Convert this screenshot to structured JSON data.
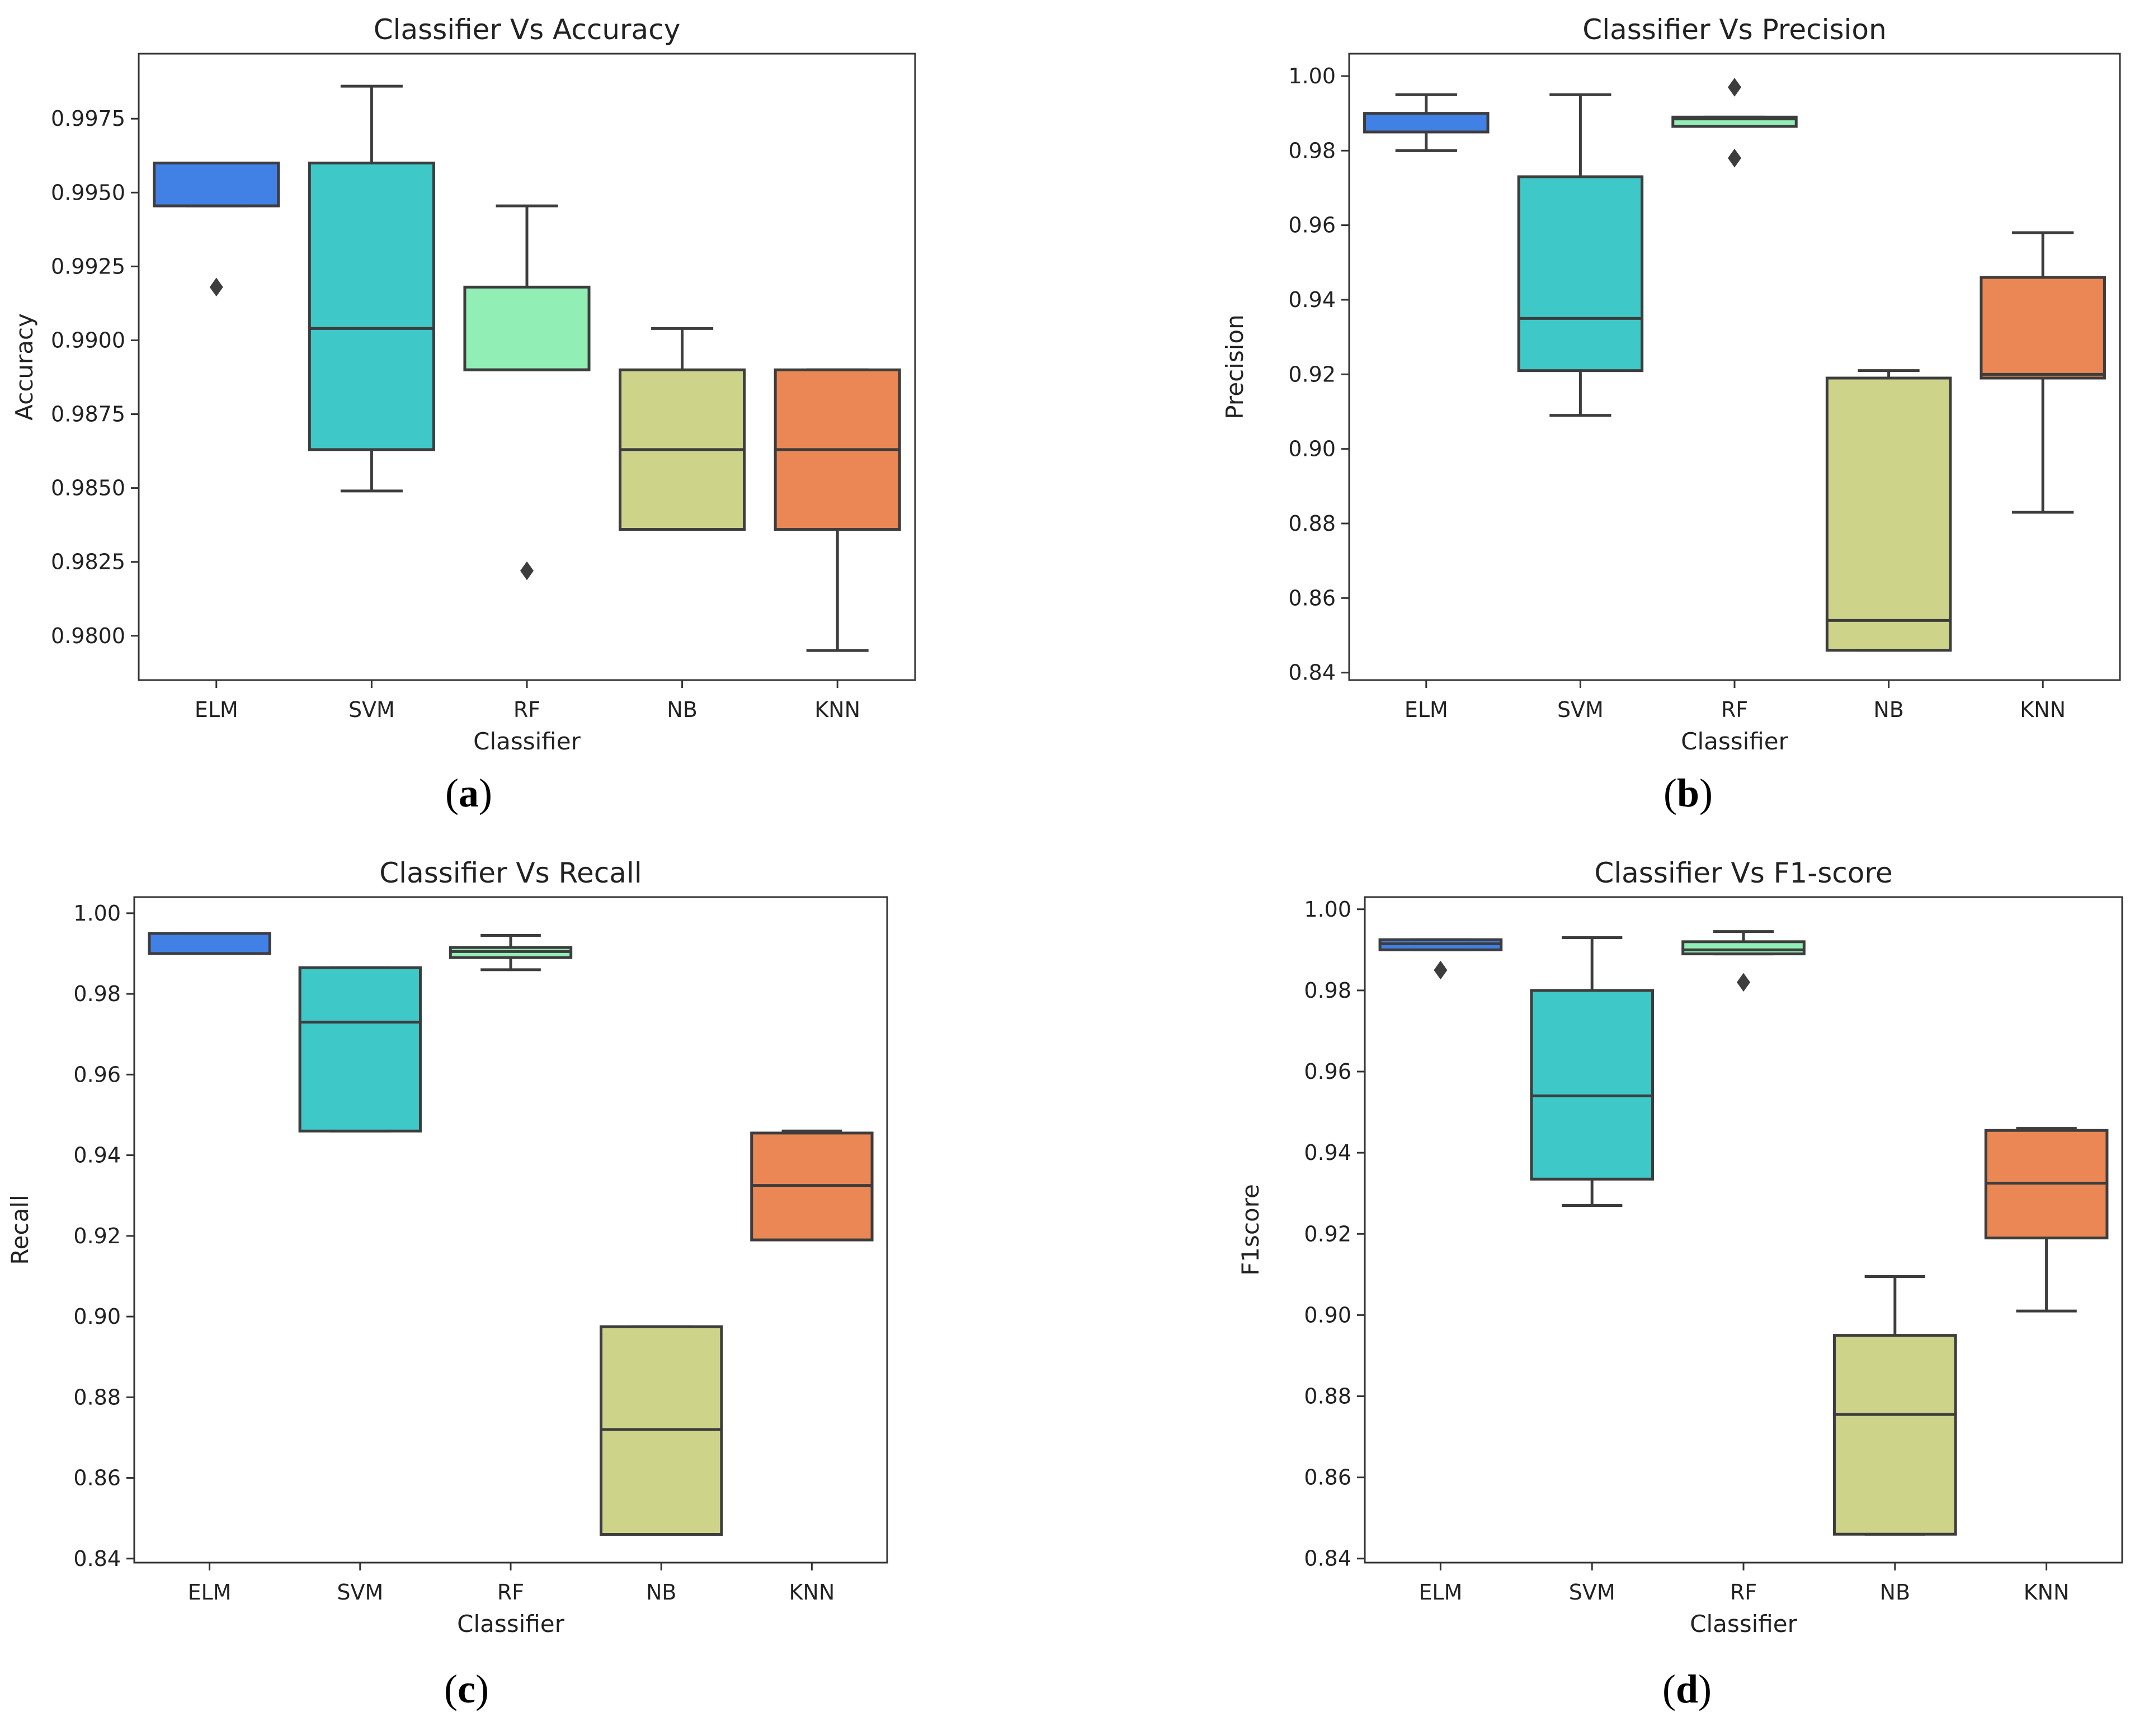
{
  "chart_data": [
    {
      "id": "a",
      "type": "box",
      "panel_label": "a",
      "title": "Classifier Vs Accuracy",
      "xlabel": "Classifier",
      "ylabel": "Accuracy",
      "categories": [
        "ELM",
        "SVM",
        "RF",
        "NB",
        "KNN"
      ],
      "colors": [
        "#4180e5",
        "#3ec8c8",
        "#91efb5",
        "#cdd48a",
        "#ea8755"
      ],
      "ylim": [
        0.9785,
        0.9997
      ],
      "yticks": [
        0.98,
        0.9825,
        0.985,
        0.9875,
        0.99,
        0.9925,
        0.995,
        0.9975
      ],
      "ytick_labels": [
        "0.9800",
        "0.9825",
        "0.9850",
        "0.9875",
        "0.9900",
        "0.9925",
        "0.9950",
        "0.9975"
      ],
      "boxes": [
        {
          "whisker_low": 0.99455,
          "q1": 0.99455,
          "median": 0.99455,
          "q3": 0.996,
          "whisker_high": 0.996,
          "fliers": [
            0.9918
          ]
        },
        {
          "whisker_low": 0.9849,
          "q1": 0.9863,
          "median": 0.9904,
          "q3": 0.996,
          "whisker_high": 0.9986,
          "fliers": []
        },
        {
          "whisker_low": 0.989,
          "q1": 0.989,
          "median": 0.989,
          "q3": 0.9918,
          "whisker_high": 0.99455,
          "fliers": [
            0.9822
          ]
        },
        {
          "whisker_low": 0.9836,
          "q1": 0.9836,
          "median": 0.9863,
          "q3": 0.989,
          "whisker_high": 0.9904,
          "fliers": []
        },
        {
          "whisker_low": 0.9795,
          "q1": 0.9836,
          "median": 0.9863,
          "q3": 0.989,
          "whisker_high": 0.989,
          "fliers": []
        }
      ]
    },
    {
      "id": "b",
      "type": "box",
      "panel_label": "b",
      "title": "Classifier Vs Precision",
      "xlabel": "Classifier",
      "ylabel": "Precision",
      "categories": [
        "ELM",
        "SVM",
        "RF",
        "NB",
        "KNN"
      ],
      "colors": [
        "#4180e5",
        "#3ec8c8",
        "#91efb5",
        "#cdd48a",
        "#ea8755"
      ],
      "ylim": [
        0.838,
        1.006
      ],
      "yticks": [
        0.84,
        0.86,
        0.88,
        0.9,
        0.92,
        0.94,
        0.96,
        0.98,
        1.0
      ],
      "ytick_labels": [
        "0.84",
        "0.86",
        "0.88",
        "0.90",
        "0.92",
        "0.94",
        "0.96",
        "0.98",
        "1.00"
      ],
      "boxes": [
        {
          "whisker_low": 0.98,
          "q1": 0.985,
          "median": 0.985,
          "q3": 0.99,
          "whisker_high": 0.995,
          "fliers": []
        },
        {
          "whisker_low": 0.909,
          "q1": 0.921,
          "median": 0.935,
          "q3": 0.973,
          "whisker_high": 0.995,
          "fliers": []
        },
        {
          "whisker_low": 0.9865,
          "q1": 0.9865,
          "median": 0.9885,
          "q3": 0.989,
          "whisker_high": 0.989,
          "fliers": [
            0.997,
            0.978
          ]
        },
        {
          "whisker_low": 0.846,
          "q1": 0.846,
          "median": 0.854,
          "q3": 0.919,
          "whisker_high": 0.921,
          "fliers": []
        },
        {
          "whisker_low": 0.883,
          "q1": 0.919,
          "median": 0.92,
          "q3": 0.946,
          "whisker_high": 0.958,
          "fliers": []
        }
      ]
    },
    {
      "id": "c",
      "type": "box",
      "panel_label": "c",
      "title": "Classifier Vs Recall",
      "xlabel": "Classifier",
      "ylabel": "Recall",
      "categories": [
        "ELM",
        "SVM",
        "RF",
        "NB",
        "KNN"
      ],
      "colors": [
        "#4180e5",
        "#3ec8c8",
        "#91efb5",
        "#cdd48a",
        "#ea8755"
      ],
      "ylim": [
        0.839,
        1.004
      ],
      "yticks": [
        0.84,
        0.86,
        0.88,
        0.9,
        0.92,
        0.94,
        0.96,
        0.98,
        1.0
      ],
      "ytick_labels": [
        "0.84",
        "0.86",
        "0.88",
        "0.90",
        "0.92",
        "0.94",
        "0.96",
        "0.98",
        "1.00"
      ],
      "boxes": [
        {
          "whisker_low": 0.99,
          "q1": 0.99,
          "median": 0.99,
          "q3": 0.995,
          "whisker_high": 0.995,
          "fliers": []
        },
        {
          "whisker_low": 0.946,
          "q1": 0.946,
          "median": 0.973,
          "q3": 0.9865,
          "whisker_high": 0.9865,
          "fliers": []
        },
        {
          "whisker_low": 0.986,
          "q1": 0.989,
          "median": 0.9905,
          "q3": 0.9915,
          "whisker_high": 0.9945,
          "fliers": []
        },
        {
          "whisker_low": 0.846,
          "q1": 0.846,
          "median": 0.872,
          "q3": 0.8975,
          "whisker_high": 0.8975,
          "fliers": []
        },
        {
          "whisker_low": 0.919,
          "q1": 0.919,
          "median": 0.9325,
          "q3": 0.9455,
          "whisker_high": 0.946,
          "fliers": []
        }
      ]
    },
    {
      "id": "d",
      "type": "box",
      "panel_label": "d",
      "title": "Classifier Vs F1-score",
      "xlabel": "Classifier",
      "ylabel": "F1score",
      "categories": [
        "ELM",
        "SVM",
        "RF",
        "NB",
        "KNN"
      ],
      "colors": [
        "#4180e5",
        "#3ec8c8",
        "#91efb5",
        "#cdd48a",
        "#ea8755"
      ],
      "ylim": [
        0.839,
        1.003
      ],
      "yticks": [
        0.84,
        0.86,
        0.88,
        0.9,
        0.92,
        0.94,
        0.96,
        0.98,
        1.0
      ],
      "ytick_labels": [
        "0.84",
        "0.86",
        "0.88",
        "0.90",
        "0.92",
        "0.94",
        "0.96",
        "0.98",
        "1.00"
      ],
      "boxes": [
        {
          "whisker_low": 0.99,
          "q1": 0.99,
          "median": 0.9915,
          "q3": 0.9925,
          "whisker_high": 0.9925,
          "fliers": [
            0.985
          ]
        },
        {
          "whisker_low": 0.927,
          "q1": 0.9335,
          "median": 0.954,
          "q3": 0.98,
          "whisker_high": 0.993,
          "fliers": []
        },
        {
          "whisker_low": 0.989,
          "q1": 0.989,
          "median": 0.99,
          "q3": 0.992,
          "whisker_high": 0.9945,
          "fliers": [
            0.982
          ]
        },
        {
          "whisker_low": 0.846,
          "q1": 0.846,
          "median": 0.8755,
          "q3": 0.895,
          "whisker_high": 0.9095,
          "fliers": []
        },
        {
          "whisker_low": 0.901,
          "q1": 0.919,
          "median": 0.9325,
          "q3": 0.9455,
          "whisker_high": 0.946,
          "fliers": []
        }
      ]
    }
  ]
}
